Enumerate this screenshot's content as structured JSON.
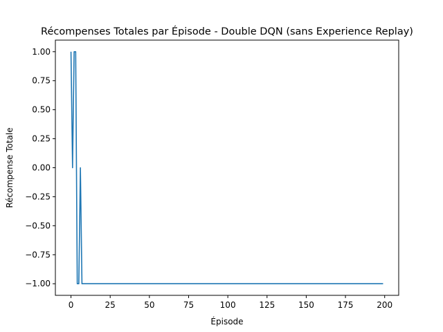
{
  "chart_data": {
    "type": "line",
    "title": "Récompenses Totales par Épisode - Double DQN (sans Experience Replay)",
    "xlabel": "Épisode",
    "ylabel": "Récompense Totale",
    "xlim": [
      -9.95,
      208.95
    ],
    "ylim": [
      -1.1,
      1.1
    ],
    "x_ticks": [
      0,
      25,
      50,
      75,
      100,
      125,
      150,
      175,
      200
    ],
    "x_tick_labels": [
      "0",
      "25",
      "50",
      "75",
      "100",
      "125",
      "150",
      "175",
      "200"
    ],
    "y_ticks": [
      1.0,
      0.75,
      0.5,
      0.25,
      0.0,
      -0.25,
      -0.5,
      -0.75,
      -1.0
    ],
    "y_tick_labels": [
      "1.00",
      "0.75",
      "0.50",
      "0.25",
      "0.00",
      "−0.25",
      "−0.50",
      "−0.75",
      "−1.00"
    ],
    "grid": false,
    "series": [
      {
        "color": "#1f77b4",
        "x": [
          0,
          1,
          2,
          3,
          4,
          5,
          6,
          7,
          199
        ],
        "y": [
          1,
          0,
          1,
          1,
          -1,
          -1,
          0,
          -1,
          -1
        ]
      }
    ]
  }
}
